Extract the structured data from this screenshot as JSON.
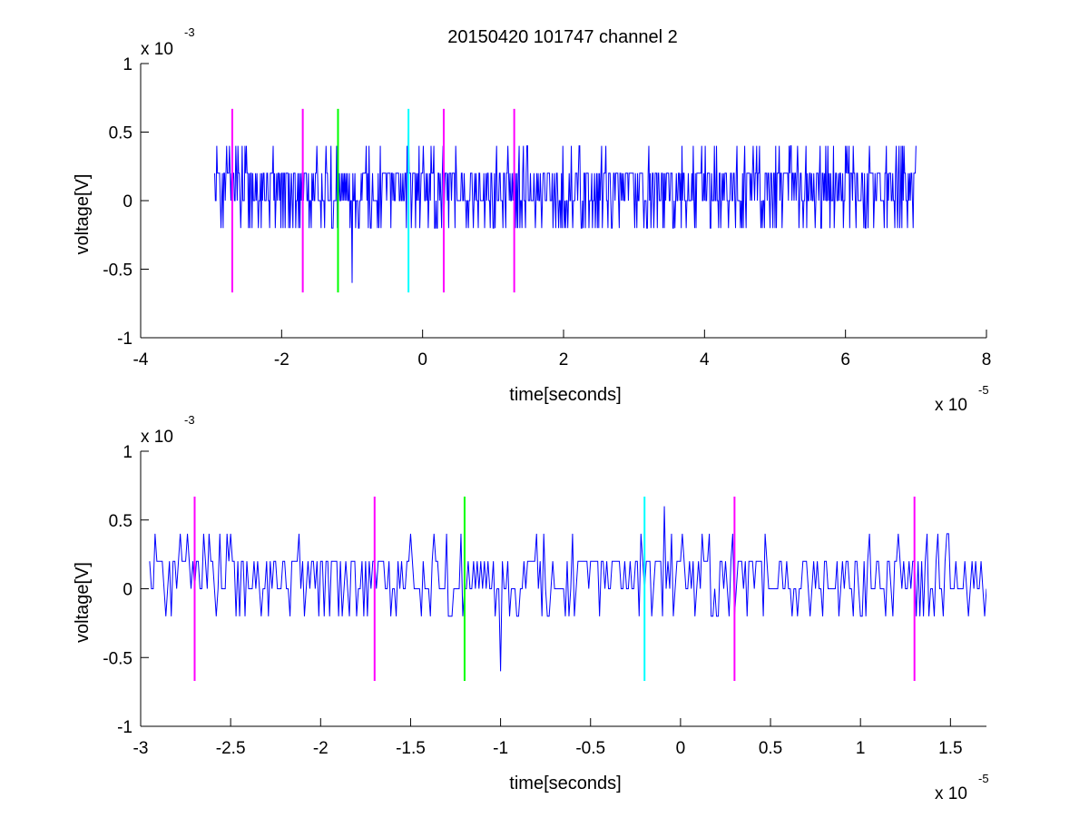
{
  "figure": {
    "title": "20150420 101747 channel 2",
    "background": "#ffffff"
  },
  "chart_data": [
    {
      "type": "line",
      "title": "20150420 101747 channel 2",
      "xlabel": "time[seconds]",
      "ylabel": "voltage[V]",
      "x_scale_label": "x 10",
      "x_scale_exponent": "-5",
      "y_scale_label": "x 10",
      "y_scale_exponent": "-3",
      "xlim": [
        -4e-05,
        8e-05
      ],
      "ylim": [
        -0.001,
        0.001
      ],
      "xticks": [
        -4e-05,
        -2e-05,
        0,
        2e-05,
        4e-05,
        6e-05,
        8e-05
      ],
      "xtick_labels": [
        "-4",
        "-2",
        "0",
        "2",
        "4",
        "6",
        "8"
      ],
      "yticks": [
        -0.001,
        -0.0005,
        0,
        0.0005,
        0.001
      ],
      "ytick_labels": [
        "-1",
        "-0.5",
        "0",
        "0.5",
        "1"
      ],
      "grid": false,
      "series": [
        {
          "color": "#0000ff",
          "x_start": -2.95e-05,
          "x_end": 7e-05,
          "dx": 1e-07,
          "levels_v": [
            -0.0006,
            -0.0002,
            0,
            0.0002,
            0.0004,
            0.0006
          ],
          "highlights": [
            {
              "x": -1e-05,
              "y": -0.0006
            },
            {
              "x": -2e-06,
              "y": 0.0006
            }
          ]
        }
      ],
      "markers": [
        {
          "x": -2.7e-05,
          "color": "#ff00ff",
          "ymin": -0.00067,
          "ymax": 0.00067
        },
        {
          "x": -1.7e-05,
          "color": "#ff00ff",
          "ymin": -0.00067,
          "ymax": 0.00067
        },
        {
          "x": -1.2e-05,
          "color": "#00ff00",
          "ymin": -0.00067,
          "ymax": 0.00067
        },
        {
          "x": -2e-06,
          "color": "#00ffff",
          "ymin": -0.00067,
          "ymax": 0.00067
        },
        {
          "x": 3e-06,
          "color": "#ff00ff",
          "ymin": -0.00067,
          "ymax": 0.00067
        },
        {
          "x": 1.3e-05,
          "color": "#ff00ff",
          "ymin": -0.00067,
          "ymax": 0.00067
        }
      ]
    },
    {
      "type": "line",
      "title": "",
      "xlabel": "time[seconds]",
      "ylabel": "voltage[V]",
      "x_scale_label": "x 10",
      "x_scale_exponent": "-5",
      "y_scale_label": "x 10",
      "y_scale_exponent": "-3",
      "xlim": [
        -3e-05,
        1.7e-05
      ],
      "ylim": [
        -0.001,
        0.001
      ],
      "xticks": [
        -3e-05,
        -2.5e-05,
        -2e-05,
        -1.5e-05,
        -1e-05,
        -5e-06,
        0,
        5e-06,
        1e-05,
        1.5e-05
      ],
      "xtick_labels": [
        "-3",
        "-2.5",
        "-2",
        "-1.5",
        "-1",
        "-0.5",
        "0",
        "0.5",
        "1",
        "1.5"
      ],
      "yticks": [
        -0.001,
        -0.0005,
        0,
        0.0005,
        0.001
      ],
      "ytick_labels": [
        "-1",
        "-0.5",
        "0",
        "0.5",
        "1"
      ],
      "grid": false,
      "series": [
        {
          "color": "#0000ff",
          "x_start": -2.95e-05,
          "x_end": 1.7e-05,
          "dx": 1e-07,
          "levels_v": [
            -0.0006,
            -0.0002,
            0,
            0.0002,
            0.0004,
            0.0006
          ],
          "highlights": [
            {
              "x": -1e-05,
              "y": -0.0006
            },
            {
              "x": -9e-07,
              "y": 0.0006
            }
          ]
        }
      ],
      "markers": [
        {
          "x": -2.7e-05,
          "color": "#ff00ff",
          "ymin": -0.00067,
          "ymax": 0.00067
        },
        {
          "x": -1.7e-05,
          "color": "#ff00ff",
          "ymin": -0.00067,
          "ymax": 0.00067
        },
        {
          "x": -1.2e-05,
          "color": "#00ff00",
          "ymin": -0.00067,
          "ymax": 0.00067
        },
        {
          "x": -2e-06,
          "color": "#00ffff",
          "ymin": -0.00067,
          "ymax": 0.00067
        },
        {
          "x": 3e-06,
          "color": "#ff00ff",
          "ymin": -0.00067,
          "ymax": 0.00067
        },
        {
          "x": 1.3e-05,
          "color": "#ff00ff",
          "ymin": -0.00067,
          "ymax": 0.00067
        }
      ]
    }
  ]
}
